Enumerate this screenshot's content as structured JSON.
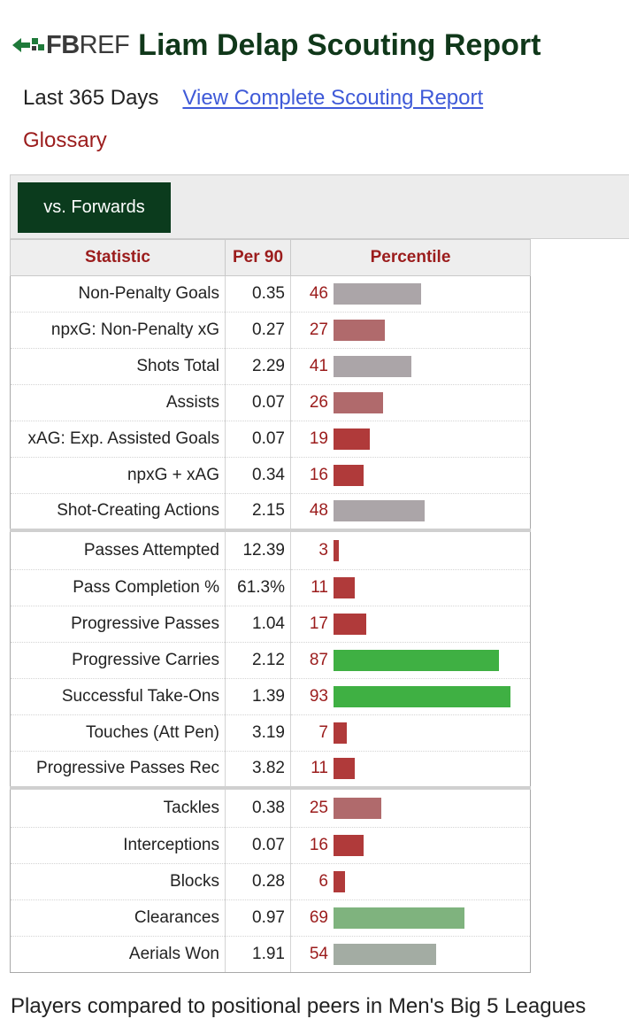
{
  "header": {
    "logo_fb": "FB",
    "logo_ref": "REF",
    "title": "Liam Delap Scouting Report"
  },
  "subline": {
    "period": "Last 365 Days",
    "report_link": "View Complete Scouting Report"
  },
  "glossary": "Glossary",
  "tabs": {
    "active": "vs. Forwards"
  },
  "table": {
    "headers": {
      "statistic": "Statistic",
      "per90": "Per 90",
      "percentile": "Percentile"
    },
    "rows": [
      {
        "stat": "Non-Penalty Goals",
        "per90": "0.35",
        "percentile": "46"
      },
      {
        "stat": "npxG: Non-Penalty xG",
        "per90": "0.27",
        "percentile": "27"
      },
      {
        "stat": "Shots Total",
        "per90": "2.29",
        "percentile": "41"
      },
      {
        "stat": "Assists",
        "per90": "0.07",
        "percentile": "26"
      },
      {
        "stat": "xAG: Exp. Assisted Goals",
        "per90": "0.07",
        "percentile": "19"
      },
      {
        "stat": "npxG + xAG",
        "per90": "0.34",
        "percentile": "16"
      },
      {
        "stat": "Shot-Creating Actions",
        "per90": "2.15",
        "percentile": "48"
      },
      {
        "stat": "Passes Attempted",
        "per90": "12.39",
        "percentile": "3"
      },
      {
        "stat": "Pass Completion %",
        "per90": "61.3%",
        "percentile": "11"
      },
      {
        "stat": "Progressive Passes",
        "per90": "1.04",
        "percentile": "17"
      },
      {
        "stat": "Progressive Carries",
        "per90": "2.12",
        "percentile": "87"
      },
      {
        "stat": "Successful Take-Ons",
        "per90": "1.39",
        "percentile": "93"
      },
      {
        "stat": "Touches (Att Pen)",
        "per90": "3.19",
        "percentile": "7"
      },
      {
        "stat": "Progressive Passes Rec",
        "per90": "3.82",
        "percentile": "11"
      },
      {
        "stat": "Tackles",
        "per90": "0.38",
        "percentile": "25"
      },
      {
        "stat": "Interceptions",
        "per90": "0.07",
        "percentile": "16"
      },
      {
        "stat": "Blocks",
        "per90": "0.28",
        "percentile": "6"
      },
      {
        "stat": "Clearances",
        "per90": "0.97",
        "percentile": "69"
      },
      {
        "stat": "Aerials Won",
        "per90": "1.91",
        "percentile": "54"
      }
    ]
  },
  "colors": {
    "title_green": "#10381a",
    "tab_green": "#0b3b1d",
    "header_red": "#9b1c1c",
    "link_blue": "#3f5ad8",
    "bar_low": "#b03a3a",
    "bar_mid": "#aba5a8",
    "bar_high": "#3fb043"
  },
  "footer_text": "Players compared to positional peers in Men's Big 5 Leagues"
}
